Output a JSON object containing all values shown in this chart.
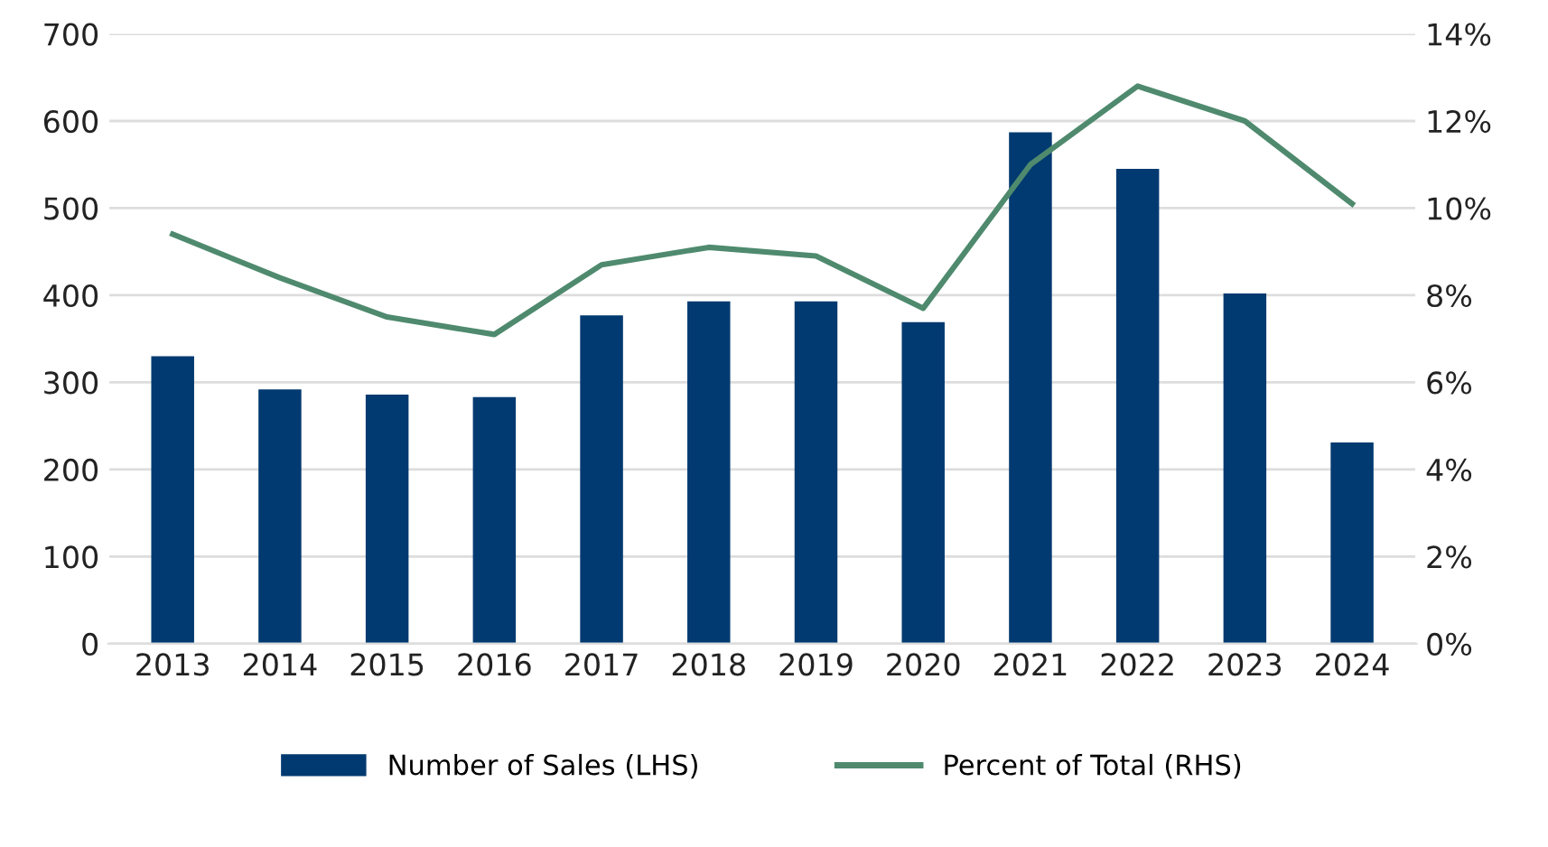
{
  "chart_data": {
    "type": "bar",
    "categories": [
      "2013",
      "2014",
      "2015",
      "2016",
      "2017",
      "2018",
      "2019",
      "2020",
      "2021",
      "2022",
      "2023",
      "2024"
    ],
    "series": [
      {
        "name": "Number of Sales (LHS)",
        "color": "#003a70",
        "values": [
          330,
          292,
          286,
          283,
          377,
          393,
          393,
          369,
          587,
          545,
          402,
          231
        ]
      },
      {
        "name": "Percent of Total (RHS)",
        "type": "line",
        "axis": "y2",
        "color": "#4f8a6e",
        "values": [
          9.4,
          8.4,
          7.5,
          7.1,
          8.7,
          9.1,
          8.9,
          7.7,
          11.0,
          12.8,
          12.0,
          10.1
        ]
      }
    ],
    "ylim": [
      0,
      700
    ],
    "yticks": [
      0,
      100,
      200,
      300,
      400,
      500,
      600,
      700
    ],
    "y2lim": [
      0,
      14
    ],
    "y2ticks": [
      {
        "value": 0,
        "label": "0%"
      },
      {
        "value": 2,
        "label": "2%"
      },
      {
        "value": 4,
        "label": "4%"
      },
      {
        "value": 6,
        "label": "6%"
      },
      {
        "value": 8,
        "label": "8%"
      },
      {
        "value": 10,
        "label": "10%"
      },
      {
        "value": 12,
        "label": "12%"
      },
      {
        "value": 14,
        "label": "14%"
      }
    ],
    "grid": "y",
    "legend": "bottom",
    "marker": "none",
    "line_style": "solid"
  }
}
